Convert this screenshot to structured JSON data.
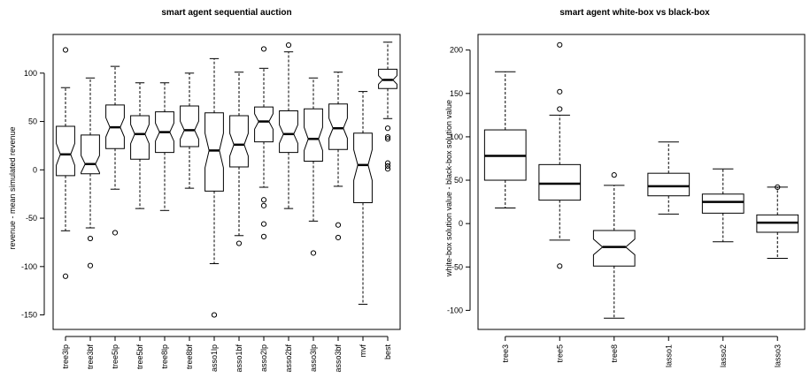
{
  "chart_data": [
    {
      "type": "box",
      "title": "smart agent sequential auction",
      "xlabel": "",
      "ylabel": "revenue - mean simulated revenue",
      "ylim": [
        -165,
        140
      ],
      "yticks": [
        -150,
        -100,
        -50,
        0,
        50,
        100
      ],
      "notched": true,
      "grid": false,
      "categories": [
        "tree3lp",
        "tree3bf",
        "tree5lp",
        "tree5bf",
        "tree8lp",
        "tree8bf",
        "asso1lp",
        "asso1bf",
        "asso2lp",
        "asso2bf",
        "asso3lp",
        "asso3bf",
        "mvf",
        "best"
      ],
      "boxes": [
        {
          "q1": -6,
          "median": 16,
          "q3": 45,
          "whisker_low": -63,
          "whisker_high": 85,
          "outliers": [
            124,
            -110
          ]
        },
        {
          "q1": -4,
          "median": 6,
          "q3": 36,
          "whisker_low": -60,
          "whisker_high": 95,
          "outliers": [
            -71,
            -99
          ]
        },
        {
          "q1": 22,
          "median": 44,
          "q3": 67,
          "whisker_low": -20,
          "whisker_high": 107,
          "outliers": [
            -65
          ]
        },
        {
          "q1": 11,
          "median": 37,
          "q3": 56,
          "whisker_low": -40,
          "whisker_high": 90,
          "outliers": []
        },
        {
          "q1": 18,
          "median": 39,
          "q3": 60,
          "whisker_low": -42,
          "whisker_high": 90,
          "outliers": []
        },
        {
          "q1": 24,
          "median": 41,
          "q3": 66,
          "whisker_low": -19,
          "whisker_high": 100,
          "outliers": []
        },
        {
          "q1": -22,
          "median": 20,
          "q3": 59,
          "whisker_low": -97,
          "whisker_high": 115,
          "outliers": [
            -150
          ]
        },
        {
          "q1": 3,
          "median": 26,
          "q3": 56,
          "whisker_low": -68,
          "whisker_high": 101,
          "outliers": [
            -76
          ]
        },
        {
          "q1": 29,
          "median": 50,
          "q3": 65,
          "whisker_low": -18,
          "whisker_high": 105,
          "outliers": [
            125,
            -31,
            -37,
            -56,
            -69
          ]
        },
        {
          "q1": 18,
          "median": 37,
          "q3": 61,
          "whisker_low": -40,
          "whisker_high": 122,
          "outliers": [
            129
          ]
        },
        {
          "q1": 9,
          "median": 32,
          "q3": 63,
          "whisker_low": -53,
          "whisker_high": 95,
          "outliers": [
            -86
          ]
        },
        {
          "q1": 21,
          "median": 43,
          "q3": 68,
          "whisker_low": -17,
          "whisker_high": 101,
          "outliers": [
            -57,
            -70
          ]
        },
        {
          "q1": -34,
          "median": 5,
          "q3": 38,
          "whisker_low": -139,
          "whisker_high": 81,
          "outliers": []
        },
        {
          "q1": 84,
          "median": 93,
          "q3": 104,
          "whisker_low": 53,
          "whisker_high": 132,
          "outliers": [
            43,
            34,
            32,
            7,
            4,
            1
          ]
        }
      ]
    },
    {
      "type": "box",
      "title": "smart agent white-box vs black-box",
      "xlabel": "",
      "ylabel": "white-box solution value - black-box solution value",
      "ylim": [
        -122,
        218
      ],
      "yticks": [
        -100,
        -50,
        0,
        50,
        100,
        150,
        200
      ],
      "notched": [
        false,
        false,
        true,
        false,
        false,
        false
      ],
      "grid": false,
      "categories": [
        "tree3",
        "tree5",
        "tree8",
        "lasso1",
        "lasso2",
        "lasso3"
      ],
      "boxes": [
        {
          "q1": 50,
          "median": 78,
          "q3": 108,
          "whisker_low": 18,
          "whisker_high": 175,
          "outliers": []
        },
        {
          "q1": 27,
          "median": 46,
          "q3": 68,
          "whisker_low": -19,
          "whisker_high": 125,
          "outliers": [
            206,
            152,
            132,
            -49
          ]
        },
        {
          "q1": -49,
          "median": -27,
          "q3": -8,
          "whisker_low": -109,
          "whisker_high": 44,
          "outliers": [
            56
          ]
        },
        {
          "q1": 32,
          "median": 43,
          "q3": 58,
          "whisker_low": 11,
          "whisker_high": 94,
          "outliers": []
        },
        {
          "q1": 12,
          "median": 25,
          "q3": 34,
          "whisker_low": -21,
          "whisker_high": 63,
          "outliers": []
        },
        {
          "q1": -10,
          "median": 1,
          "q3": 10,
          "whisker_low": -40,
          "whisker_high": 42,
          "outliers": [
            42
          ]
        }
      ]
    }
  ]
}
